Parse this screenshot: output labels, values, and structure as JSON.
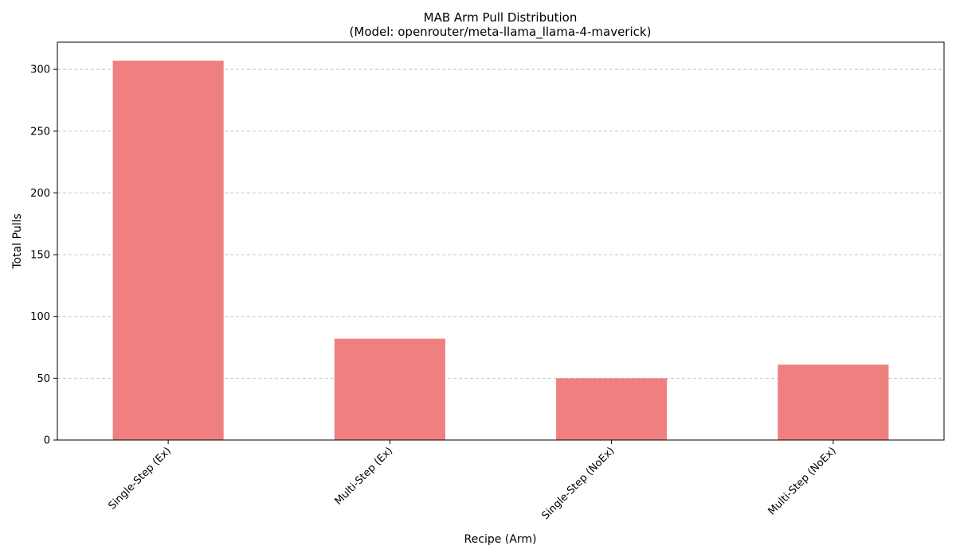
{
  "chart_data": {
    "type": "bar",
    "title_line1": "MAB Arm Pull Distribution",
    "title_line2": "(Model: openrouter/meta-llama_llama-4-maverick)",
    "xlabel": "Recipe (Arm)",
    "ylabel": "Total Pulls",
    "categories": [
      "Single-Step (Ex)",
      "Multi-Step (Ex)",
      "Single-Step (NoEx)",
      "Multi-Step (NoEx)"
    ],
    "values": [
      307,
      82,
      50,
      61
    ],
    "ylim": [
      0,
      322
    ],
    "yticks": [
      0,
      50,
      100,
      150,
      200,
      250,
      300
    ],
    "grid": "y-dashed",
    "bar_color": "#F08080"
  }
}
